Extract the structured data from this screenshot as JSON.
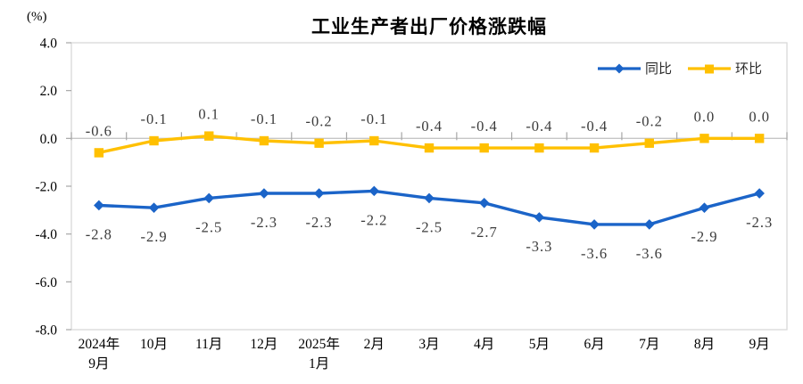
{
  "chart_data": {
    "type": "line",
    "title": "工业生产者出厂价格涨跌幅",
    "unit_label": "(%)",
    "categories": [
      [
        "2024年",
        "9月"
      ],
      [
        "10月"
      ],
      [
        "11月"
      ],
      [
        "12月"
      ],
      [
        "2025年",
        "1月"
      ],
      [
        "2月"
      ],
      [
        "3月"
      ],
      [
        "4月"
      ],
      [
        "5月"
      ],
      [
        "6月"
      ],
      [
        "7月"
      ],
      [
        "8月"
      ],
      [
        "9月"
      ]
    ],
    "series": [
      {
        "name": "同比",
        "color": "#1B64C8",
        "marker": "diamond",
        "label_position": "below",
        "values": [
          -2.8,
          -2.9,
          -2.5,
          -2.3,
          -2.3,
          -2.2,
          -2.5,
          -2.7,
          -3.3,
          -3.6,
          -3.6,
          -2.9,
          -2.3
        ]
      },
      {
        "name": "环比",
        "color": "#FFC000",
        "marker": "square",
        "label_position": "above",
        "values": [
          -0.6,
          -0.1,
          0.1,
          -0.1,
          -0.2,
          -0.1,
          -0.4,
          -0.4,
          -0.4,
          -0.4,
          -0.2,
          0.0,
          0.0
        ]
      }
    ],
    "ylim": [
      -8.0,
      4.0
    ],
    "ytick_step": 2.0,
    "yticks": [
      "4.0",
      "2.0",
      "0.0",
      "-2.0",
      "-4.0",
      "-6.0",
      "-8.0"
    ],
    "grid": false,
    "legend_position": "top-right",
    "colors": {
      "axis_border": "#D9D9D9",
      "zero_line": "#C6C6C6",
      "tick": "#A6A6A6",
      "background": "#FFFFFF"
    }
  }
}
